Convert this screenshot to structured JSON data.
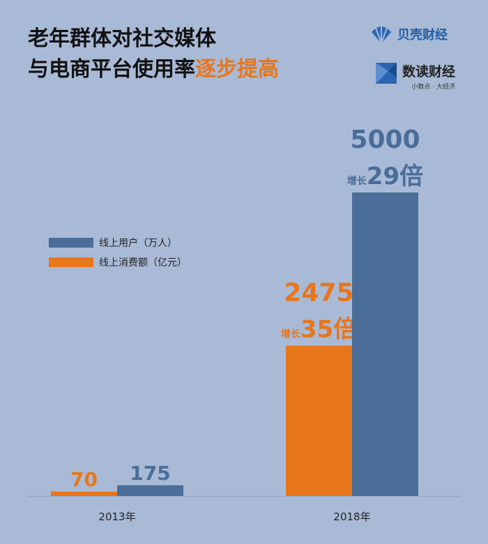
{
  "header": {
    "title_line1": "老年群体对社交媒体",
    "title_line2_prefix": "与电商平台使用率",
    "title_line2_accent": "逐步提高"
  },
  "brands": {
    "brand1_name": "贝壳财经",
    "brand2_name": "数读财经",
    "brand2_slogan": "小数点 · 大经济"
  },
  "colors": {
    "users": "#4a6d99",
    "spending": "#e8761a",
    "background": "#a9bad6"
  },
  "chart_data": {
    "type": "bar",
    "categories": [
      "2013年",
      "2018年"
    ],
    "series": [
      {
        "name": "线上消费额（亿元）",
        "values": [
          70,
          2475
        ],
        "color": "#e8761a"
      },
      {
        "name": "线上用户（万人）",
        "values": [
          175,
          5000
        ],
        "color": "#4a6d99"
      }
    ],
    "growth": {
      "prefix": "增长",
      "spending_2018": "35倍",
      "users_2018": "29倍"
    },
    "ylim": [
      0,
      5000
    ],
    "grid": false,
    "legend": "left"
  }
}
